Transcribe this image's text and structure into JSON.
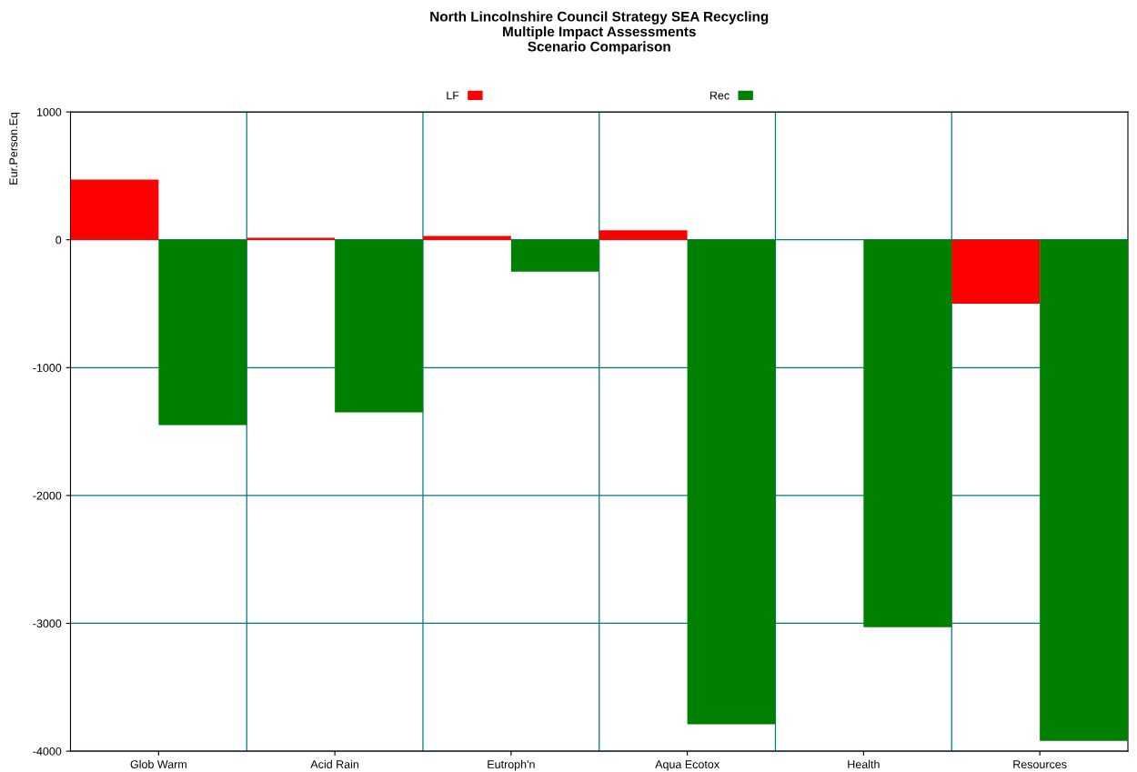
{
  "chart_data": {
    "type": "bar",
    "title": "North Lincolnshire Council Strategy SEA Recycling\nMultiple Impact Assessments\nScenario Comparison",
    "ylabel": "Eur.Person.Eq",
    "categories": [
      "Glob Warm",
      "Acid Rain",
      "Eutroph'n",
      "Aqua Ecotox",
      "Health",
      "Resources"
    ],
    "series": [
      {
        "name": "LF",
        "color": "#ff0000",
        "values": [
          470,
          15,
          30,
          75,
          null,
          -500
        ]
      },
      {
        "name": "Rec",
        "color": "#008000",
        "values": [
          -1450,
          -1350,
          -250,
          -3790,
          -3030,
          -3920
        ]
      }
    ],
    "ylim": [
      -4000,
      1000
    ],
    "yticks": [
      -4000,
      -3000,
      -2000,
      -1000,
      0,
      1000
    ],
    "grid": true,
    "legend": "top"
  }
}
